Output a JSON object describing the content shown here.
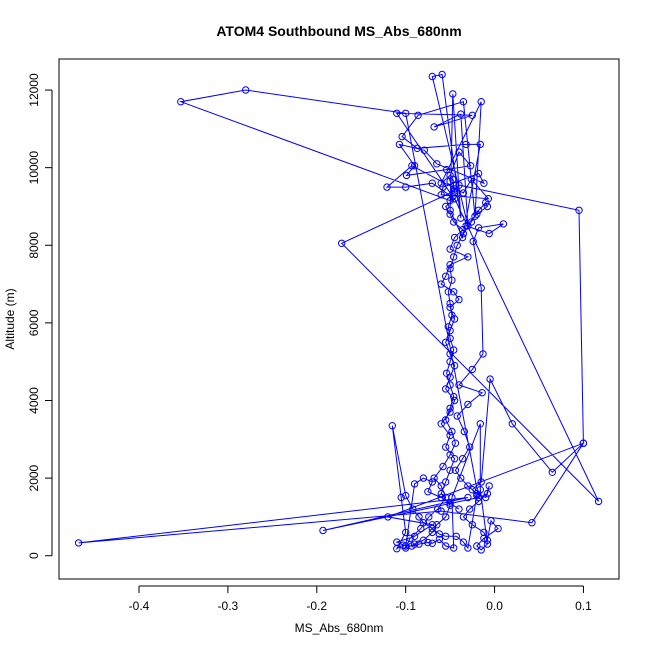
{
  "chart_data": {
    "type": "line",
    "title": "ATOM4 Southbound MS_Abs_680nm",
    "xlabel": "MS_Abs_680nm",
    "ylabel": "Altitude (m)",
    "xlim": [
      -0.49,
      0.14
    ],
    "ylim": [
      -600,
      12800
    ],
    "xticks": [
      -0.4,
      -0.3,
      -0.2,
      -0.1,
      0.0,
      0.1
    ],
    "xtick_labels": [
      "-0.4",
      "-0.3",
      "-0.2",
      "-0.1",
      "0.0",
      "0.1"
    ],
    "yticks": [
      0,
      2000,
      4000,
      6000,
      8000,
      10000,
      12000
    ],
    "ytick_labels": [
      "0",
      "2000",
      "4000",
      "6000",
      "8000",
      "10000",
      "12000"
    ],
    "grid": false,
    "marker": "open-circle",
    "series": [
      {
        "color": "#0000ff",
        "points": [
          [
            -0.047,
            9250
          ],
          [
            -0.11,
            11400
          ],
          [
            -0.025,
            11350
          ],
          [
            -0.068,
            11050
          ],
          [
            -0.038,
            11380
          ],
          [
            -0.03,
            8500
          ],
          [
            -0.07,
            12350
          ],
          [
            -0.059,
            12400
          ],
          [
            -0.038,
            8700
          ],
          [
            -0.047,
            11900
          ],
          [
            -0.05,
            8900
          ],
          [
            -0.036,
            8200
          ],
          [
            -0.016,
            10600
          ],
          [
            -0.032,
            10600
          ],
          [
            -0.087,
            10500
          ],
          [
            -0.104,
            10800
          ],
          [
            -0.086,
            11350
          ],
          [
            -0.035,
            11700
          ],
          [
            -0.022,
            8750
          ],
          [
            -0.015,
            11700
          ],
          [
            -0.06,
            9600
          ],
          [
            -0.05,
            9800
          ],
          [
            -0.04,
            10400
          ],
          [
            -0.027,
            10050
          ],
          [
            -0.054,
            9950
          ],
          [
            -0.099,
            9800
          ],
          [
            -0.09,
            10050
          ],
          [
            -0.107,
            10600
          ],
          [
            -0.079,
            10450
          ],
          [
            -0.065,
            10100
          ],
          [
            -0.012,
            9600
          ],
          [
            -0.018,
            9850
          ],
          [
            -0.058,
            9500
          ],
          [
            -0.06,
            9300
          ],
          [
            -0.007,
            9200
          ],
          [
            -0.026,
            9700
          ],
          [
            -0.035,
            9350
          ],
          [
            -0.093,
            10050
          ],
          [
            -0.121,
            9500
          ],
          [
            -0.1,
            9500
          ],
          [
            -0.07,
            9600
          ],
          [
            -0.045,
            9200
          ],
          [
            -0.055,
            9000
          ],
          [
            -0.05,
            8800
          ],
          [
            -0.046,
            8600
          ],
          [
            -0.036,
            8400
          ],
          [
            -0.045,
            8200
          ],
          [
            -0.05,
            7900
          ],
          [
            -0.03,
            7700
          ],
          [
            -0.05,
            7500
          ],
          [
            -0.055,
            7200
          ],
          [
            -0.06,
            7000
          ],
          [
            -0.046,
            6800
          ],
          [
            -0.04,
            6600
          ],
          [
            -0.05,
            6400
          ],
          [
            -0.045,
            6100
          ],
          [
            -0.05,
            5800
          ],
          [
            -0.055,
            5500
          ],
          [
            -0.05,
            5200
          ],
          [
            -0.045,
            4900
          ],
          [
            -0.05,
            4600
          ],
          [
            -0.055,
            4300
          ],
          [
            -0.045,
            4000
          ],
          [
            -0.05,
            3700
          ],
          [
            -0.06,
            3400
          ],
          [
            -0.05,
            3100
          ],
          [
            -0.055,
            2800
          ],
          [
            -0.045,
            2500
          ],
          [
            -0.05,
            2200
          ],
          [
            -0.055,
            1900
          ],
          [
            -0.06,
            1600
          ],
          [
            -0.05,
            1300
          ],
          [
            -0.055,
            1000
          ],
          [
            -0.065,
            800
          ],
          [
            -0.07,
            600
          ],
          [
            -0.08,
            400
          ],
          [
            -0.09,
            300
          ],
          [
            -0.1,
            200
          ],
          [
            -0.095,
            450
          ],
          [
            -0.083,
            700
          ],
          [
            -0.074,
            1000
          ],
          [
            -0.064,
            1200
          ],
          [
            -0.055,
            1500
          ],
          [
            -0.06,
            1800
          ],
          [
            -0.068,
            2000
          ],
          [
            -0.058,
            2300
          ],
          [
            -0.05,
            2600
          ],
          [
            -0.044,
            2900
          ],
          [
            -0.048,
            3200
          ],
          [
            -0.055,
            3500
          ],
          [
            -0.05,
            3800
          ],
          [
            -0.046,
            4100
          ],
          [
            -0.05,
            4400
          ],
          [
            -0.054,
            4700
          ],
          [
            -0.05,
            5000
          ],
          [
            -0.046,
            5300
          ],
          [
            -0.05,
            5600
          ],
          [
            -0.052,
            5900
          ],
          [
            -0.048,
            6200
          ],
          [
            -0.05,
            6500
          ],
          [
            -0.052,
            6800
          ],
          [
            -0.048,
            7100
          ],
          [
            -0.05,
            7400
          ],
          [
            -0.046,
            7700
          ],
          [
            -0.042,
            8000
          ],
          [
            -0.035,
            8300
          ],
          [
            -0.026,
            8600
          ],
          [
            -0.018,
            8900
          ],
          [
            -0.01,
            9100
          ],
          [
            -0.008,
            9000
          ],
          [
            -0.02,
            8800
          ],
          [
            -0.032,
            8500
          ],
          [
            -0.006,
            8300
          ],
          [
            0.01,
            8550
          ],
          [
            -0.018,
            8450
          ],
          [
            -0.024,
            8100
          ],
          [
            -0.015,
            6900
          ],
          [
            -0.013,
            5200
          ],
          [
            -0.025,
            4800
          ],
          [
            -0.04,
            4400
          ],
          [
            -0.014,
            4200
          ],
          [
            -0.03,
            3900
          ],
          [
            -0.042,
            3600
          ],
          [
            -0.034,
            3200
          ],
          [
            -0.028,
            2800
          ],
          [
            -0.036,
            2500
          ],
          [
            -0.044,
            2200
          ],
          [
            -0.038,
            2000
          ],
          [
            -0.03,
            1800
          ],
          [
            -0.02,
            1600
          ],
          [
            -0.01,
            1500
          ],
          [
            -0.006,
            1800
          ],
          [
            -0.008,
            1600
          ],
          [
            -0.018,
            1400
          ],
          [
            -0.028,
            1200
          ],
          [
            -0.035,
            1000
          ],
          [
            -0.025,
            800
          ],
          [
            -0.012,
            600
          ],
          [
            -0.008,
            400
          ],
          [
            -0.004,
            900
          ],
          [
            0.004,
            700
          ],
          [
            -0.012,
            450
          ],
          [
            -0.02,
            250
          ],
          [
            -0.015,
            150
          ],
          [
            -0.008,
            300
          ],
          [
            -0.016,
            1700
          ],
          [
            -0.016,
            3400
          ],
          [
            -0.048,
            1500
          ],
          [
            -0.046,
            200
          ],
          [
            -0.055,
            250
          ],
          [
            -0.062,
            420
          ],
          [
            -0.07,
            320
          ],
          [
            -0.075,
            340
          ],
          [
            -0.085,
            300
          ],
          [
            -0.093,
            250
          ],
          [
            -0.103,
            270
          ],
          [
            -0.11,
            180
          ],
          [
            -0.1,
            600
          ],
          [
            -0.105,
            1500
          ],
          [
            -0.115,
            3350
          ],
          [
            -0.1,
            1550
          ],
          [
            -0.092,
            1200
          ],
          [
            -0.085,
            1000
          ],
          [
            -0.08,
            850
          ],
          [
            -0.07,
            700
          ],
          [
            -0.062,
            560
          ],
          [
            -0.055,
            500
          ],
          [
            -0.043,
            500
          ],
          [
            -0.035,
            350
          ],
          [
            -0.03,
            200
          ],
          [
            -0.02,
            1550
          ],
          [
            -0.025,
            1700
          ],
          [
            -0.015,
            1900
          ],
          [
            -0.005,
            4550
          ],
          [
            0.02,
            3400
          ],
          [
            0.065,
            2150
          ],
          [
            0.1,
            2900
          ],
          [
            0.095,
            8900
          ],
          [
            -0.04,
            9550
          ],
          [
            -0.045,
            9450
          ],
          [
            -0.045,
            9350
          ],
          [
            -0.047,
            9700
          ],
          [
            -0.05,
            9650
          ],
          [
            -0.045,
            9400
          ],
          [
            -0.172,
            8050
          ],
          [
            0.117,
            1400
          ],
          [
            -0.045,
            9200
          ],
          [
            -0.05,
            9150
          ],
          [
            -0.353,
            11700
          ],
          [
            -0.28,
            12000
          ],
          [
            -0.1,
            11400
          ],
          [
            -0.018,
            1500
          ],
          [
            -0.193,
            650
          ],
          [
            -0.03,
            1500
          ],
          [
            -0.468,
            330
          ],
          [
            -0.06,
            1150
          ],
          [
            0.042,
            850
          ],
          [
            0.1,
            2900
          ],
          [
            -0.12,
            1000
          ],
          [
            -0.07,
            800
          ],
          [
            -0.09,
            500
          ],
          [
            -0.11,
            350
          ],
          [
            -0.1,
            250
          ],
          [
            -0.09,
            1850
          ],
          [
            -0.08,
            2000
          ],
          [
            -0.07,
            1900
          ],
          [
            -0.075,
            1650
          ],
          [
            -0.06,
            1500
          ],
          [
            -0.05,
            1350
          ],
          [
            -0.04,
            1200
          ]
        ]
      }
    ]
  }
}
